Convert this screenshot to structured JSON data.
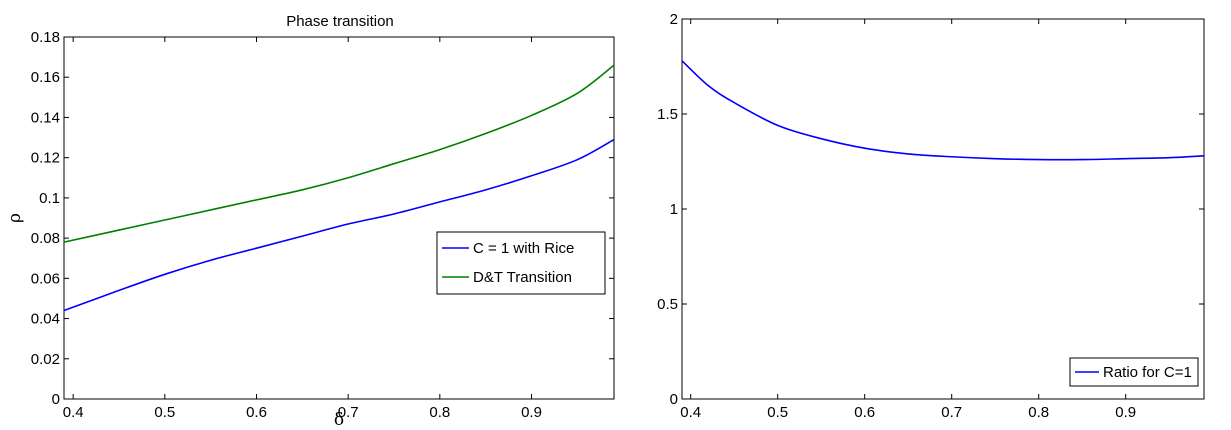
{
  "chart_data": [
    {
      "type": "line",
      "title": "Phase transition",
      "xlabel": "δ",
      "ylabel": "ρ",
      "xlim": [
        0.39,
        0.99
      ],
      "ylim": [
        0,
        0.18
      ],
      "xticks": [
        0.4,
        0.5,
        0.6,
        0.7,
        0.8,
        0.9
      ],
      "xtick_labels": [
        "0.4",
        "0.5",
        "0.6",
        "0.7",
        "0.8",
        "0.9"
      ],
      "yticks": [
        0,
        0.02,
        0.04,
        0.06,
        0.08,
        0.1,
        0.12,
        0.14,
        0.16,
        0.18
      ],
      "ytick_labels": [
        "0",
        "0.02",
        "0.04",
        "0.06",
        "0.08",
        "0.1",
        "0.12",
        "0.14",
        "0.16",
        "0.18"
      ],
      "grid": false,
      "legend_position": "center-right",
      "series": [
        {
          "name": "C = 1 with Rice",
          "color": "#0000ff",
          "x": [
            0.39,
            0.45,
            0.5,
            0.55,
            0.6,
            0.65,
            0.7,
            0.75,
            0.8,
            0.85,
            0.9,
            0.95,
            0.99
          ],
          "y": [
            0.044,
            0.054,
            0.062,
            0.069,
            0.075,
            0.081,
            0.087,
            0.092,
            0.098,
            0.104,
            0.111,
            0.119,
            0.129
          ]
        },
        {
          "name": "D&T Transition",
          "color": "#008000",
          "x": [
            0.39,
            0.45,
            0.5,
            0.55,
            0.6,
            0.65,
            0.7,
            0.75,
            0.8,
            0.85,
            0.9,
            0.95,
            0.99
          ],
          "y": [
            0.078,
            0.084,
            0.089,
            0.094,
            0.099,
            0.104,
            0.11,
            0.117,
            0.124,
            0.132,
            0.141,
            0.152,
            0.166
          ]
        }
      ]
    },
    {
      "type": "line",
      "title": "",
      "xlabel": "",
      "ylabel": "",
      "xlim": [
        0.39,
        0.99
      ],
      "ylim": [
        0,
        2
      ],
      "xticks": [
        0.4,
        0.5,
        0.6,
        0.7,
        0.8,
        0.9
      ],
      "xtick_labels": [
        "0.4",
        "0.5",
        "0.6",
        "0.7",
        "0.8",
        "0.9"
      ],
      "yticks": [
        0,
        0.5,
        1,
        1.5,
        2
      ],
      "ytick_labels": [
        "0",
        "0.5",
        "1",
        "1.5",
        "2"
      ],
      "grid": false,
      "legend_position": "bottom-right",
      "series": [
        {
          "name": "Ratio for C=1",
          "color": "#0000ff",
          "x": [
            0.39,
            0.42,
            0.45,
            0.5,
            0.55,
            0.6,
            0.65,
            0.7,
            0.75,
            0.8,
            0.85,
            0.9,
            0.95,
            0.99
          ],
          "y": [
            1.78,
            1.65,
            1.56,
            1.44,
            1.37,
            1.32,
            1.29,
            1.275,
            1.265,
            1.26,
            1.26,
            1.265,
            1.27,
            1.28
          ]
        }
      ]
    }
  ]
}
